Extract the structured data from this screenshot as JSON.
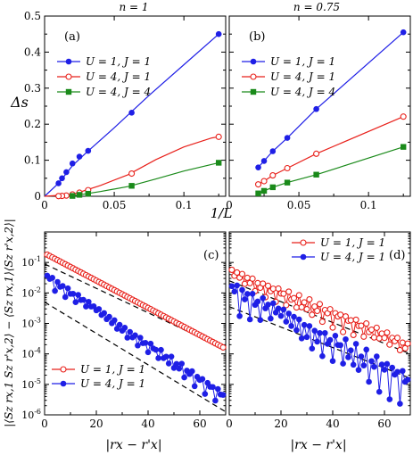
{
  "colors": {
    "blue": "#1f1fe6",
    "red": "#e8201a",
    "green": "#1a8a1a",
    "axis": "#000000",
    "fit": "#000000"
  },
  "labels": {
    "title_left": "n = 1",
    "title_right": "n = 0.75",
    "ylabel_top": "Δs",
    "xlabel_top": "1/L",
    "ylabel_bottom": "|⟨Sz rx,1 Sz r'x,2⟩ − ⟨Sz rx,1⟩⟨Sz r'x,2⟩|",
    "xlabel_bottom": "|rx − r'x|"
  },
  "chart_data": [
    {
      "type": "line",
      "panel": "(a)",
      "title": "n = 1",
      "xlabel": "1/L",
      "ylabel": "Δs",
      "xlim": [
        0,
        0.13
      ],
      "ylim": [
        0,
        0.5
      ],
      "xticks": [
        "0",
        "0.05",
        "0.1"
      ],
      "yticks": [
        "0",
        "0.1",
        "0.2",
        "0.3",
        "0.4",
        "0.5"
      ],
      "legend": "upper-left",
      "series": [
        {
          "name": "U = 1, J = 1",
          "color": "#1f1fe6",
          "marker": "filled-circle",
          "x": [
            0.125,
            0.0625,
            0.03125,
            0.025,
            0.02,
            0.015625,
            0.0125,
            0.01
          ],
          "y": [
            0.45,
            0.232,
            0.126,
            0.11,
            0.091,
            0.067,
            0.05,
            0.036
          ],
          "fit_x": [
            0,
            0.01,
            0.02,
            0.03,
            0.05,
            0.075,
            0.1,
            0.125
          ],
          "fit_y": [
            0,
            0.036,
            0.085,
            0.121,
            0.19,
            0.28,
            0.365,
            0.45
          ]
        },
        {
          "name": "U = 4, J = 1",
          "color": "#e8201a",
          "marker": "open-circle",
          "x": [
            0.125,
            0.0625,
            0.03125,
            0.025,
            0.02,
            0.015625,
            0.0125,
            0.01
          ],
          "y": [
            0.165,
            0.063,
            0.017,
            0.01,
            0.005,
            0.002,
            0.001,
            0.0005
          ],
          "fit_x": [
            0,
            0.02,
            0.04,
            0.06,
            0.08,
            0.1,
            0.12,
            0.125
          ],
          "fit_y": [
            0,
            0.005,
            0.03,
            0.06,
            0.102,
            0.137,
            0.162,
            0.165
          ]
        },
        {
          "name": "U = 4, J = 4",
          "color": "#1a8a1a",
          "marker": "filled-square",
          "x": [
            0.125,
            0.0625,
            0.03125,
            0.025,
            0.02
          ],
          "y": [
            0.093,
            0.029,
            0.007,
            0.004,
            0.001
          ],
          "fit_x": [
            0.02,
            0.04,
            0.06,
            0.08,
            0.1,
            0.125
          ],
          "fit_y": [
            0.001,
            0.013,
            0.027,
            0.048,
            0.07,
            0.093
          ]
        }
      ]
    },
    {
      "type": "line",
      "panel": "(b)",
      "title": "n = 0.75",
      "xlabel": "1/L",
      "xlim": [
        0,
        0.13
      ],
      "ylim": [
        0,
        0.5
      ],
      "xticks": [
        "0",
        "0.05",
        "0.1"
      ],
      "legend": "upper-left",
      "series": [
        {
          "name": "U = 1, J = 1",
          "color": "#1f1fe6",
          "marker": "filled-circle",
          "x": [
            0.125,
            0.0625,
            0.041667,
            0.03125,
            0.025,
            0.020833
          ],
          "y": [
            0.455,
            0.242,
            0.162,
            0.125,
            0.098,
            0.08
          ]
        },
        {
          "name": "U = 4, J = 1",
          "color": "#e8201a",
          "marker": "open-circle",
          "x": [
            0.125,
            0.0625,
            0.041667,
            0.03125,
            0.025,
            0.020833
          ],
          "y": [
            0.221,
            0.118,
            0.078,
            0.058,
            0.042,
            0.033
          ]
        },
        {
          "name": "U = 4, J = 4",
          "color": "#1a8a1a",
          "marker": "filled-square",
          "x": [
            0.125,
            0.0625,
            0.041667,
            0.03125,
            0.025,
            0.020833
          ],
          "y": [
            0.137,
            0.06,
            0.038,
            0.025,
            0.015,
            0.008
          ]
        }
      ]
    },
    {
      "type": "line",
      "panel": "(c)",
      "xlabel": "|rx − r'x|",
      "xlim": [
        0,
        70
      ],
      "ylim_exp": [
        -6,
        0
      ],
      "yscale": "log",
      "xticks": [
        "0",
        "20",
        "40",
        "60"
      ],
      "yticks": [
        "10^-6",
        "10^-5",
        "10^-4",
        "10^-3",
        "10^-2",
        "10^-1"
      ],
      "legend": "lower-left",
      "series": [
        {
          "name": "U = 1, J = 1",
          "color": "#e8201a",
          "marker": "open-circle",
          "log10_start": -0.7,
          "log10_slope": -0.04475,
          "oscillation": 0.0,
          "npoints": 69
        },
        {
          "name": "U = 4, J = 1",
          "color": "#1f1fe6",
          "marker": "filled-circle",
          "log10_start": -1.4,
          "log10_slope": -0.0575,
          "oscillation": 0.35,
          "npoints": 69
        }
      ],
      "fits": [
        {
          "log10_at_0": -1.05,
          "log10_at_70": -3.85
        },
        {
          "log10_at_0": -2.3,
          "log10_at_70": -5.9
        }
      ]
    },
    {
      "type": "line",
      "panel": "(d)",
      "xlabel": "|rx − r'x|",
      "xlim": [
        0,
        70
      ],
      "ylim_exp": [
        -6,
        0
      ],
      "yscale": "log",
      "xticks": [
        "0",
        "20",
        "40",
        "60"
      ],
      "legend": "upper-right",
      "series": [
        {
          "name": "U = 1, J = 1",
          "color": "#e8201a",
          "marker": "open-circle",
          "log10_start": -1.3,
          "log10_slope": -0.035,
          "oscillation": 0.45,
          "npoints": 69
        },
        {
          "name": "U = 4, J = 1",
          "color": "#1f1fe6",
          "marker": "filled-circle",
          "log10_start": -1.8,
          "log10_slope": -0.045,
          "oscillation": 0.9,
          "npoints": 69
        }
      ],
      "fits": [
        {
          "log10_at_0": -1.6,
          "log10_at_70": -4.0
        },
        {
          "log10_at_0": -2.45,
          "log10_at_70": -4.8
        }
      ]
    }
  ]
}
